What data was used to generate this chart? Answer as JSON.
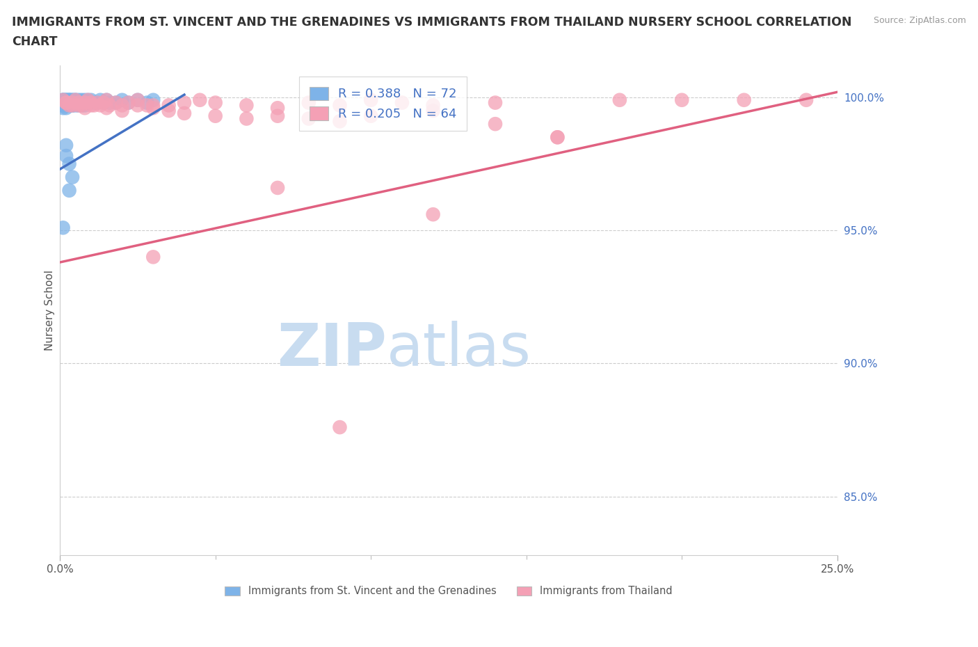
{
  "title_line1": "IMMIGRANTS FROM ST. VINCENT AND THE GRENADINES VS IMMIGRANTS FROM THAILAND NURSERY SCHOOL CORRELATION",
  "title_line2": "CHART",
  "source_text": "Source: ZipAtlas.com",
  "ylabel": "Nursery School",
  "x_min": 0.0,
  "x_max": 0.25,
  "y_min": 0.828,
  "y_max": 1.012,
  "y_ticks": [
    0.85,
    0.9,
    0.95,
    1.0
  ],
  "y_tick_labels": [
    "85.0%",
    "90.0%",
    "95.0%",
    "100.0%"
  ],
  "color_blue": "#7EB3E8",
  "color_pink": "#F4A0B5",
  "line_blue": "#4472C4",
  "line_pink": "#E06080",
  "watermark_zip": "ZIP",
  "watermark_atlas": "atlas",
  "watermark_color": "#C8DCF0",
  "blue_x": [
    0.001,
    0.001,
    0.001,
    0.001,
    0.001,
    0.001,
    0.001,
    0.001,
    0.001,
    0.001,
    0.002,
    0.002,
    0.002,
    0.002,
    0.002,
    0.002,
    0.002,
    0.002,
    0.002,
    0.002,
    0.003,
    0.003,
    0.003,
    0.003,
    0.003,
    0.003,
    0.003,
    0.003,
    0.004,
    0.004,
    0.004,
    0.004,
    0.004,
    0.004,
    0.005,
    0.005,
    0.005,
    0.005,
    0.005,
    0.006,
    0.006,
    0.006,
    0.006,
    0.007,
    0.007,
    0.007,
    0.008,
    0.008,
    0.008,
    0.009,
    0.009,
    0.01,
    0.01,
    0.011,
    0.012,
    0.013,
    0.014,
    0.015,
    0.016,
    0.018,
    0.02,
    0.022,
    0.025,
    0.028,
    0.03,
    0.001,
    0.002,
    0.003,
    0.004,
    0.003,
    0.002
  ],
  "blue_y": [
    0.999,
    0.998,
    0.997,
    0.996,
    0.999,
    0.998,
    0.997,
    0.998,
    0.999,
    0.997,
    0.999,
    0.998,
    0.997,
    0.999,
    0.998,
    0.997,
    0.998,
    0.999,
    0.997,
    0.996,
    0.999,
    0.998,
    0.997,
    0.998,
    0.999,
    0.997,
    0.998,
    0.999,
    0.999,
    0.998,
    0.997,
    0.998,
    0.999,
    0.997,
    0.999,
    0.998,
    0.997,
    0.998,
    0.999,
    0.998,
    0.999,
    0.997,
    0.998,
    0.999,
    0.998,
    0.997,
    0.998,
    0.999,
    0.997,
    0.999,
    0.998,
    0.998,
    0.999,
    0.998,
    0.998,
    0.999,
    0.998,
    0.999,
    0.998,
    0.998,
    0.999,
    0.998,
    0.999,
    0.998,
    0.999,
    0.951,
    0.982,
    0.975,
    0.97,
    0.965,
    0.978
  ],
  "pink_x": [
    0.001,
    0.002,
    0.003,
    0.004,
    0.005,
    0.006,
    0.007,
    0.008,
    0.009,
    0.01,
    0.011,
    0.012,
    0.013,
    0.014,
    0.015,
    0.016,
    0.018,
    0.02,
    0.022,
    0.025,
    0.028,
    0.03,
    0.035,
    0.04,
    0.045,
    0.05,
    0.06,
    0.07,
    0.08,
    0.09,
    0.1,
    0.11,
    0.12,
    0.14,
    0.16,
    0.18,
    0.2,
    0.22,
    0.24,
    0.002,
    0.004,
    0.006,
    0.008,
    0.01,
    0.015,
    0.02,
    0.025,
    0.03,
    0.035,
    0.04,
    0.05,
    0.06,
    0.07,
    0.08,
    0.09,
    0.1,
    0.12,
    0.14,
    0.16,
    0.07,
    0.12,
    0.09,
    0.03
  ],
  "pink_y": [
    0.999,
    0.998,
    0.997,
    0.998,
    0.999,
    0.998,
    0.997,
    0.998,
    0.999,
    0.998,
    0.997,
    0.998,
    0.997,
    0.998,
    0.999,
    0.997,
    0.998,
    0.997,
    0.998,
    0.999,
    0.997,
    0.997,
    0.997,
    0.998,
    0.999,
    0.998,
    0.997,
    0.996,
    0.998,
    0.997,
    0.999,
    0.998,
    0.997,
    0.998,
    0.985,
    0.999,
    0.999,
    0.999,
    0.999,
    0.998,
    0.997,
    0.997,
    0.996,
    0.997,
    0.996,
    0.995,
    0.997,
    0.996,
    0.995,
    0.994,
    0.993,
    0.992,
    0.993,
    0.992,
    0.991,
    0.993,
    0.995,
    0.99,
    0.985,
    0.966,
    0.956,
    0.876,
    0.94
  ],
  "blue_line_x": [
    0.0,
    0.04
  ],
  "blue_line_y": [
    0.973,
    1.001
  ],
  "pink_line_x": [
    0.0,
    0.25
  ],
  "pink_line_y": [
    0.938,
    1.002
  ]
}
